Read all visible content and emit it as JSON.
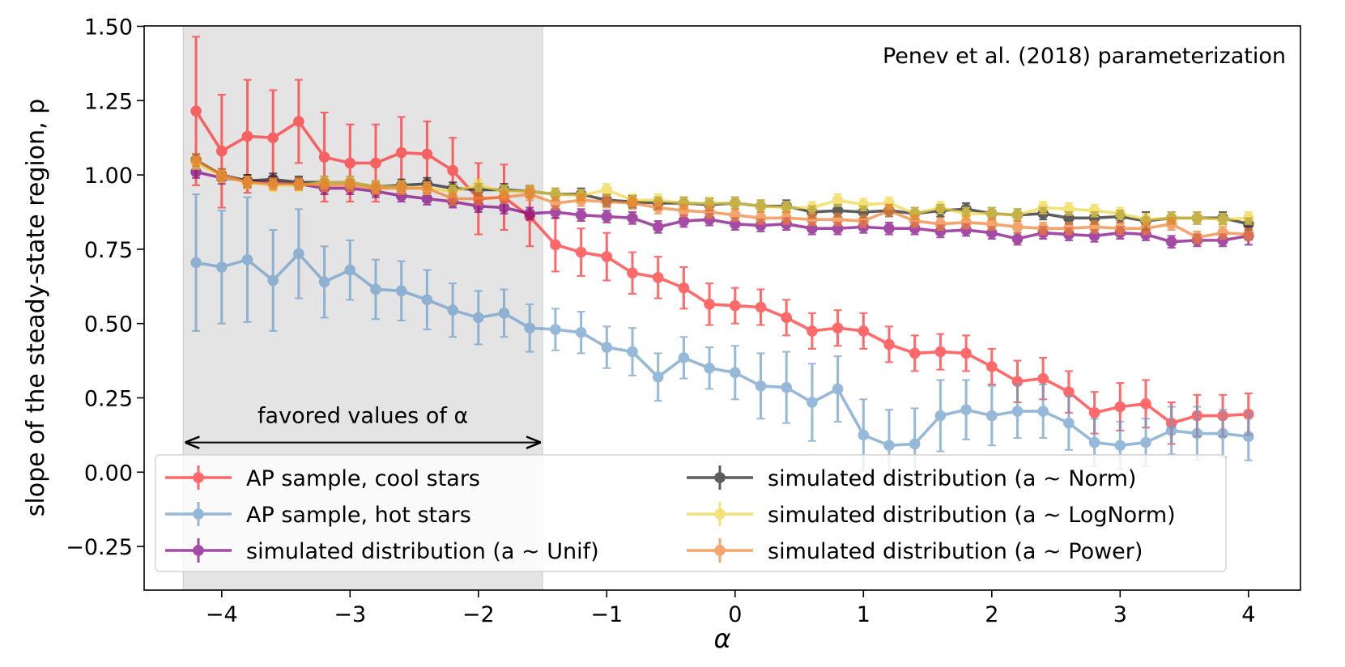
{
  "chart_data": {
    "type": "line",
    "title": "",
    "annotation": "Penev et al. (2018) parameterization",
    "xlabel": "α",
    "ylabel": "slope of the steady-state region, p",
    "xlim": [
      -4.6,
      4.4
    ],
    "ylim": [
      -0.4,
      1.5
    ],
    "x_ticks": [
      -4,
      -3,
      -2,
      -1,
      0,
      1,
      2,
      3,
      4
    ],
    "x_tick_labels": [
      "−4",
      "−3",
      "−2",
      "−1",
      "0",
      "1",
      "2",
      "3",
      "4"
    ],
    "y_ticks": [
      -0.25,
      0,
      0.25,
      0.5,
      0.75,
      1.0,
      1.25,
      1.5
    ],
    "y_tick_labels": [
      "−0.25",
      "0.00",
      "0.25",
      "0.50",
      "0.75",
      "1.00",
      "1.25",
      "1.50"
    ],
    "grid": false,
    "legend_position": "bottom",
    "shaded_region": {
      "x": [
        -4.3,
        -1.5
      ],
      "color": "#e4e4e4",
      "label": "favored values of α",
      "label_y": 0.1
    },
    "x": [
      -4.2,
      -4.0,
      -3.8,
      -3.6,
      -3.4,
      -3.2,
      -3.0,
      -2.8,
      -2.6,
      -2.4,
      -2.2,
      -2.0,
      -1.8,
      -1.6,
      -1.4,
      -1.2,
      -1.0,
      -0.8,
      -0.6,
      -0.4,
      -0.2,
      0.0,
      0.2,
      0.4,
      0.6,
      0.8,
      1.0,
      1.2,
      1.4,
      1.6,
      1.8,
      2.0,
      2.2,
      2.4,
      2.6,
      2.8,
      3.0,
      3.2,
      3.4,
      3.6,
      3.8,
      4.0
    ],
    "series": [
      {
        "name": "AP sample, cool stars",
        "color": "#ff2a2a",
        "values": [
          1.215,
          1.08,
          1.13,
          1.125,
          1.18,
          1.06,
          1.04,
          1.04,
          1.075,
          1.07,
          1.015,
          0.92,
          0.925,
          0.86,
          0.765,
          0.74,
          0.725,
          0.67,
          0.655,
          0.62,
          0.565,
          0.56,
          0.555,
          0.52,
          0.475,
          0.485,
          0.475,
          0.43,
          0.4,
          0.405,
          0.4,
          0.355,
          0.305,
          0.315,
          0.27,
          0.2,
          0.22,
          0.23,
          0.165,
          0.19,
          0.19,
          0.195
        ],
        "errors": [
          0.25,
          0.19,
          0.19,
          0.16,
          0.14,
          0.15,
          0.13,
          0.13,
          0.12,
          0.11,
          0.11,
          0.12,
          0.11,
          0.1,
          0.09,
          0.08,
          0.08,
          0.07,
          0.07,
          0.07,
          0.07,
          0.06,
          0.06,
          0.06,
          0.06,
          0.06,
          0.06,
          0.06,
          0.06,
          0.06,
          0.06,
          0.06,
          0.07,
          0.07,
          0.07,
          0.07,
          0.08,
          0.08,
          0.07,
          0.07,
          0.07,
          0.07
        ]
      },
      {
        "name": "AP sample, hot stars",
        "color": "#6a9cc9",
        "values": [
          0.705,
          0.69,
          0.715,
          0.645,
          0.735,
          0.64,
          0.68,
          0.615,
          0.61,
          0.58,
          0.545,
          0.52,
          0.535,
          0.485,
          0.48,
          0.47,
          0.42,
          0.405,
          0.32,
          0.385,
          0.35,
          0.335,
          0.29,
          0.285,
          0.235,
          0.28,
          0.125,
          0.09,
          0.095,
          0.19,
          0.21,
          0.19,
          0.205,
          0.205,
          0.165,
          0.1,
          0.09,
          0.1,
          0.14,
          0.13,
          0.13,
          0.12
        ],
        "errors": [
          0.23,
          0.19,
          0.21,
          0.17,
          0.15,
          0.12,
          0.1,
          0.1,
          0.1,
          0.1,
          0.09,
          0.09,
          0.08,
          0.08,
          0.07,
          0.07,
          0.07,
          0.08,
          0.08,
          0.07,
          0.07,
          0.09,
          0.11,
          0.12,
          0.13,
          0.11,
          0.12,
          0.12,
          0.12,
          0.12,
          0.1,
          0.1,
          0.09,
          0.09,
          0.09,
          0.08,
          0.08,
          0.08,
          0.08,
          0.09,
          0.08,
          0.08
        ]
      },
      {
        "name": "simulated distribution (a ~ Unif)",
        "color": "#800080",
        "values": [
          1.01,
          0.99,
          0.98,
          0.975,
          0.97,
          0.955,
          0.955,
          0.945,
          0.93,
          0.92,
          0.91,
          0.895,
          0.89,
          0.87,
          0.875,
          0.865,
          0.86,
          0.855,
          0.825,
          0.845,
          0.85,
          0.835,
          0.83,
          0.835,
          0.82,
          0.82,
          0.825,
          0.82,
          0.82,
          0.81,
          0.815,
          0.805,
          0.785,
          0.805,
          0.8,
          0.795,
          0.805,
          0.8,
          0.775,
          0.78,
          0.78,
          0.795
        ],
        "errors": [
          0.02,
          0.02,
          0.02,
          0.02,
          0.02,
          0.02,
          0.02,
          0.02,
          0.02,
          0.02,
          0.02,
          0.02,
          0.02,
          0.02,
          0.02,
          0.02,
          0.02,
          0.02,
          0.02,
          0.02,
          0.02,
          0.02,
          0.02,
          0.02,
          0.02,
          0.02,
          0.02,
          0.02,
          0.02,
          0.02,
          0.02,
          0.02,
          0.02,
          0.02,
          0.02,
          0.02,
          0.02,
          0.02,
          0.02,
          0.02,
          0.02,
          0.03
        ]
      },
      {
        "name": "simulated distribution (a ~ Norm)",
        "color": "#1a1a1a",
        "values": [
          1.05,
          1.0,
          0.98,
          0.985,
          0.975,
          0.975,
          0.975,
          0.96,
          0.965,
          0.97,
          0.955,
          0.95,
          0.95,
          0.945,
          0.935,
          0.935,
          0.915,
          0.91,
          0.905,
          0.905,
          0.9,
          0.905,
          0.895,
          0.895,
          0.875,
          0.88,
          0.875,
          0.88,
          0.87,
          0.88,
          0.885,
          0.87,
          0.865,
          0.87,
          0.855,
          0.855,
          0.86,
          0.845,
          0.855,
          0.855,
          0.855,
          0.835
        ],
        "errors": [
          0.02,
          0.02,
          0.02,
          0.02,
          0.02,
          0.02,
          0.02,
          0.02,
          0.02,
          0.02,
          0.02,
          0.02,
          0.02,
          0.02,
          0.02,
          0.02,
          0.02,
          0.02,
          0.02,
          0.02,
          0.02,
          0.02,
          0.02,
          0.02,
          0.02,
          0.02,
          0.02,
          0.02,
          0.02,
          0.02,
          0.02,
          0.02,
          0.02,
          0.02,
          0.02,
          0.02,
          0.02,
          0.03,
          0.02,
          0.02,
          0.02,
          0.02
        ]
      },
      {
        "name": "simulated distribution (a ~ LogNorm)",
        "color": "#f0d640",
        "values": [
          1.04,
          0.995,
          0.975,
          0.965,
          0.965,
          0.975,
          0.975,
          0.96,
          0.96,
          0.955,
          0.945,
          0.965,
          0.945,
          0.945,
          0.935,
          0.93,
          0.95,
          0.915,
          0.915,
          0.905,
          0.905,
          0.905,
          0.895,
          0.89,
          0.89,
          0.915,
          0.9,
          0.905,
          0.87,
          0.89,
          0.87,
          0.87,
          0.865,
          0.89,
          0.885,
          0.88,
          0.87,
          0.85,
          0.855,
          0.855,
          0.85,
          0.855
        ],
        "errors": [
          0.02,
          0.02,
          0.02,
          0.02,
          0.02,
          0.02,
          0.02,
          0.02,
          0.02,
          0.02,
          0.02,
          0.02,
          0.02,
          0.02,
          0.02,
          0.02,
          0.02,
          0.02,
          0.02,
          0.02,
          0.02,
          0.02,
          0.02,
          0.02,
          0.02,
          0.02,
          0.02,
          0.02,
          0.02,
          0.02,
          0.02,
          0.02,
          0.02,
          0.02,
          0.02,
          0.02,
          0.02,
          0.02,
          0.02,
          0.02,
          0.02,
          0.02
        ]
      },
      {
        "name": "simulated distribution (a ~ Power)",
        "color": "#f08030",
        "values": [
          1.05,
          1.0,
          0.975,
          0.97,
          0.97,
          0.965,
          0.965,
          0.955,
          0.955,
          0.955,
          0.92,
          0.92,
          0.925,
          0.935,
          0.905,
          0.915,
          0.91,
          0.905,
          0.89,
          0.88,
          0.875,
          0.865,
          0.855,
          0.855,
          0.85,
          0.85,
          0.845,
          0.88,
          0.845,
          0.835,
          0.84,
          0.835,
          0.825,
          0.82,
          0.82,
          0.825,
          0.82,
          0.82,
          0.835,
          0.79,
          0.805,
          0.8
        ],
        "errors": [
          0.02,
          0.02,
          0.02,
          0.02,
          0.02,
          0.02,
          0.02,
          0.02,
          0.02,
          0.02,
          0.02,
          0.02,
          0.02,
          0.02,
          0.02,
          0.02,
          0.02,
          0.02,
          0.02,
          0.02,
          0.02,
          0.02,
          0.02,
          0.02,
          0.02,
          0.02,
          0.02,
          0.02,
          0.02,
          0.02,
          0.02,
          0.02,
          0.02,
          0.02,
          0.02,
          0.02,
          0.02,
          0.02,
          0.02,
          0.02,
          0.02,
          0.02
        ]
      }
    ]
  }
}
